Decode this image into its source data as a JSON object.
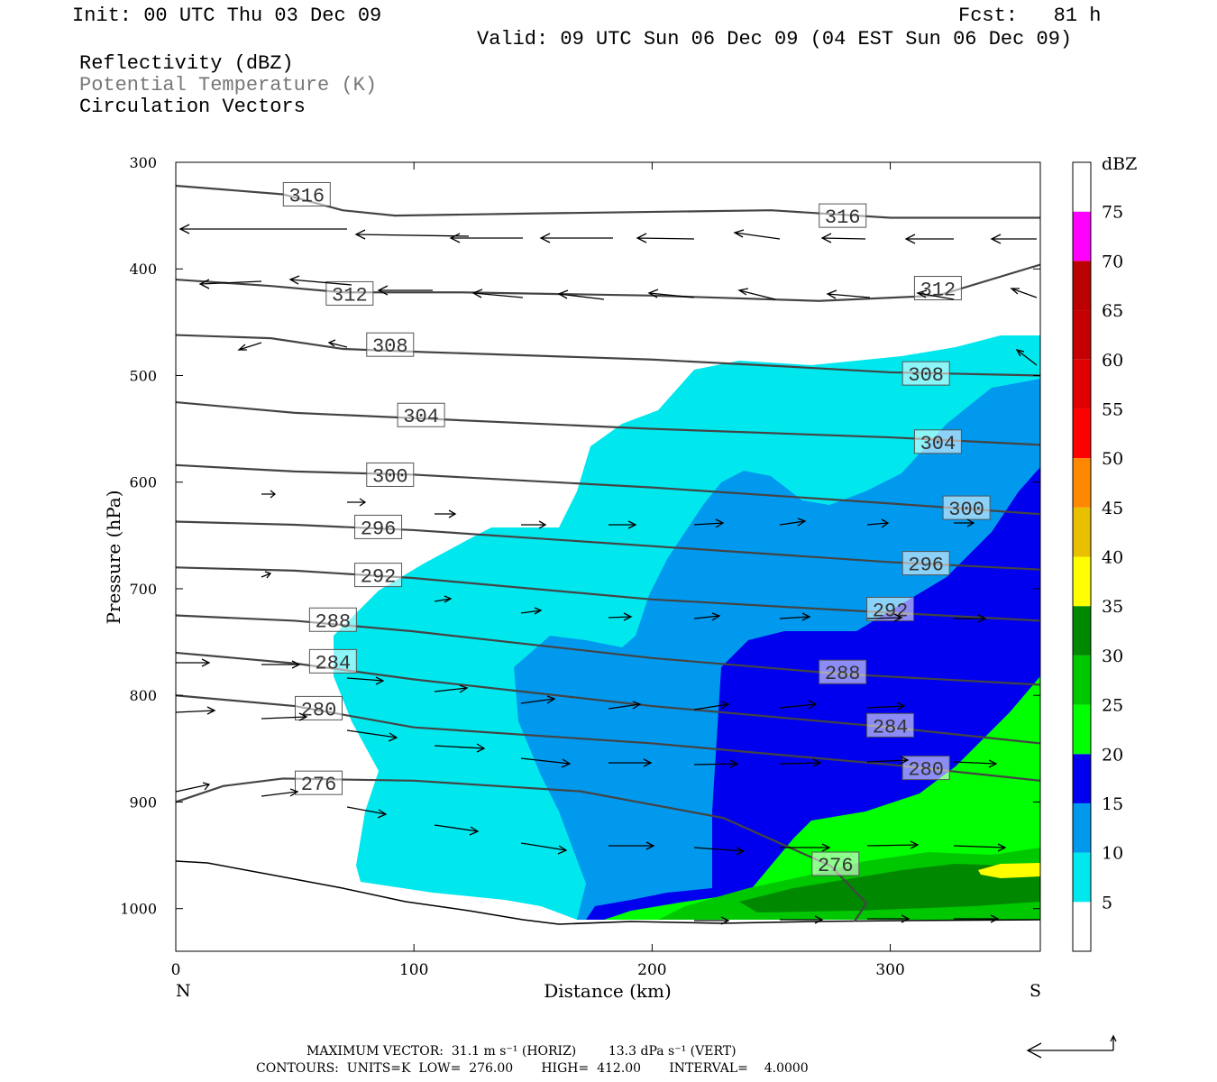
{
  "header": {
    "init": "Init: 00 UTC Thu 03 Dec 09",
    "fcst": "Fcst:   81 h",
    "valid": "Valid: 09 UTC Sun 06 Dec 09 (04 EST Sun 06 Dec 09)",
    "field1": "Reflectivity (dBZ)",
    "field2": "Potential Temperature (K)",
    "field3": "Circulation Vectors"
  },
  "footer": {
    "max_vector": "MAXIMUM VECTOR:  31.1 m s⁻¹ (HORIZ)        13.3 dPa s⁻¹ (VERT)",
    "contours": "CONTOURS:  UNITS=K  LOW=  276.00       HIGH=  412.00       INTERVAL=    4.0000"
  },
  "colors": {
    "c5": "#00e8ee",
    "c10": "#0099ee",
    "c15": "#0000ee",
    "c20": "#00ff00",
    "c25": "#00c800",
    "c30": "#008800",
    "c35": "#ffff00",
    "c40": "#e8c000",
    "c45": "#ff8800",
    "c50": "#ff0000",
    "c55": "#e00000",
    "c60": "#c40000",
    "c65": "#bb0000",
    "c70": "#ff00ff",
    "c75": "#9955cc",
    "contour": "#444444"
  },
  "chart_data": {
    "type": "cross-section",
    "xlabel": "Distance (km)",
    "ylabel": "Pressure (hPa)",
    "xlim": [
      0,
      363
    ],
    "ylim": [
      1040,
      300
    ],
    "x_ticks": [
      "0",
      "100",
      "200",
      "300"
    ],
    "x_tick_values": [
      0,
      100,
      200,
      300
    ],
    "y_ticks": [
      "300",
      "400",
      "500",
      "600",
      "700",
      "800",
      "900",
      "1000"
    ],
    "y_tick_values": [
      300,
      400,
      500,
      600,
      700,
      800,
      900,
      1000
    ],
    "left_end_label": "N",
    "right_end_label": "S",
    "colorbar": {
      "unit": "dBZ",
      "labels": [
        "5",
        "10",
        "15",
        "20",
        "25",
        "30",
        "35",
        "40",
        "45",
        "50",
        "55",
        "60",
        "65",
        "70",
        "75"
      ]
    },
    "theta_contours": [
      {
        "label": "316",
        "pts": [
          [
            0,
            322
          ],
          [
            45,
            330
          ],
          [
            70,
            345
          ],
          [
            92,
            350
          ],
          [
            150,
            348
          ],
          [
            250,
            345
          ],
          [
            300,
            352
          ],
          [
            363,
            352
          ]
        ],
        "lab": [
          [
            55,
            330
          ],
          [
            280,
            350
          ]
        ]
      },
      {
        "label": "312",
        "pts": [
          [
            0,
            410
          ],
          [
            40,
            416
          ],
          [
            70,
            422
          ],
          [
            120,
            422
          ],
          [
            200,
            425
          ],
          [
            270,
            430
          ],
          [
            320,
            425
          ],
          [
            363,
            396
          ]
        ],
        "lab": [
          [
            73,
            423
          ],
          [
            320,
            418
          ]
        ]
      },
      {
        "label": "308",
        "pts": [
          [
            0,
            462
          ],
          [
            40,
            465
          ],
          [
            70,
            475
          ],
          [
            105,
            478
          ],
          [
            200,
            485
          ],
          [
            260,
            492
          ],
          [
            300,
            497
          ],
          [
            363,
            500
          ]
        ],
        "lab": [
          [
            90,
            471
          ],
          [
            315,
            498
          ]
        ]
      },
      {
        "label": "304",
        "pts": [
          [
            0,
            525
          ],
          [
            50,
            535
          ],
          [
            100,
            540
          ],
          [
            200,
            550
          ],
          [
            300,
            558
          ],
          [
            363,
            565
          ]
        ],
        "lab": [
          [
            103,
            537
          ],
          [
            320,
            562
          ]
        ]
      },
      {
        "label": "300",
        "pts": [
          [
            0,
            584
          ],
          [
            50,
            590
          ],
          [
            100,
            593
          ],
          [
            200,
            605
          ],
          [
            300,
            620
          ],
          [
            363,
            630
          ]
        ],
        "lab": [
          [
            90,
            593
          ],
          [
            332,
            624
          ]
        ]
      },
      {
        "label": "296",
        "pts": [
          [
            0,
            637
          ],
          [
            50,
            640
          ],
          [
            100,
            645
          ],
          [
            200,
            660
          ],
          [
            300,
            675
          ],
          [
            363,
            682
          ]
        ],
        "lab": [
          [
            85,
            642
          ],
          [
            315,
            676
          ]
        ]
      },
      {
        "label": "292",
        "pts": [
          [
            0,
            680
          ],
          [
            50,
            683
          ],
          [
            100,
            690
          ],
          [
            200,
            710
          ],
          [
            280,
            720
          ],
          [
            363,
            730
          ]
        ],
        "lab": [
          [
            85,
            687
          ],
          [
            300,
            719
          ]
        ]
      },
      {
        "label": "288",
        "pts": [
          [
            0,
            725
          ],
          [
            50,
            730
          ],
          [
            100,
            740
          ],
          [
            200,
            765
          ],
          [
            280,
            780
          ],
          [
            363,
            790
          ]
        ],
        "lab": [
          [
            66,
            729
          ],
          [
            280,
            778
          ]
        ]
      },
      {
        "label": "284",
        "pts": [
          [
            0,
            760
          ],
          [
            50,
            770
          ],
          [
            100,
            785
          ],
          [
            200,
            810
          ],
          [
            300,
            830
          ],
          [
            363,
            845
          ]
        ],
        "lab": [
          [
            66,
            768
          ],
          [
            300,
            828
          ]
        ]
      },
      {
        "label": "280",
        "pts": [
          [
            0,
            800
          ],
          [
            50,
            810
          ],
          [
            100,
            830
          ],
          [
            200,
            845
          ],
          [
            300,
            865
          ],
          [
            363,
            880
          ]
        ],
        "lab": [
          [
            60,
            812
          ],
          [
            315,
            868
          ]
        ]
      },
      {
        "label": "276",
        "pts": [
          [
            0,
            900
          ],
          [
            20,
            885
          ],
          [
            45,
            878
          ],
          [
            100,
            880
          ],
          [
            170,
            890
          ],
          [
            230,
            915
          ],
          [
            275,
            960
          ],
          [
            290,
            995
          ],
          [
            285,
            1012
          ]
        ],
        "lab": [
          [
            60,
            882
          ],
          [
            277,
            958
          ]
        ]
      }
    ]
  }
}
